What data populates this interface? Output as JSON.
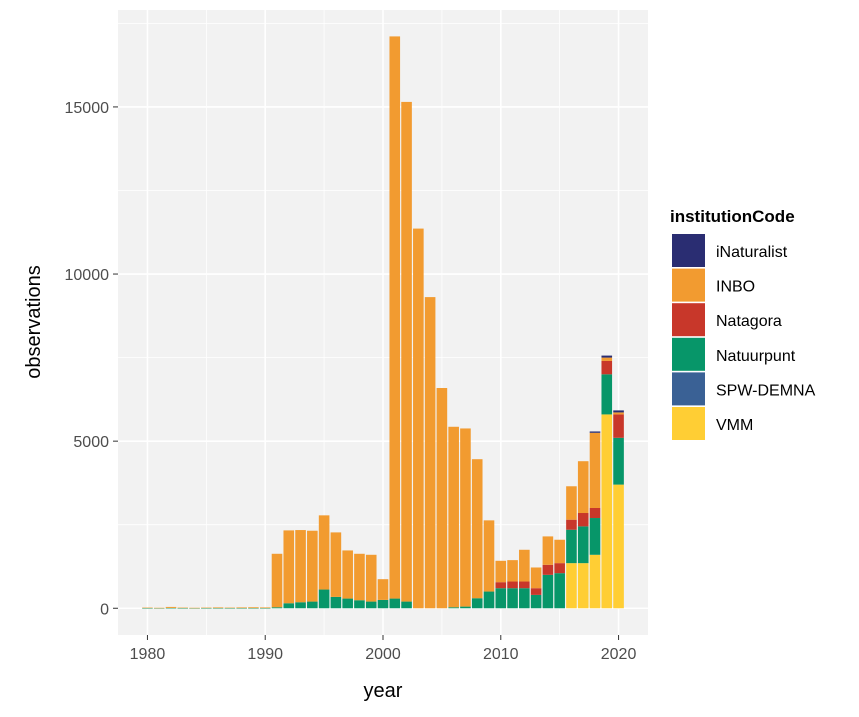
{
  "chart_data": {
    "type": "bar",
    "stacked": true,
    "xlabel": "year",
    "ylabel": "observations",
    "xlim": [
      1977.5,
      2022.5
    ],
    "ylim": [
      -800,
      17900
    ],
    "x_ticks": [
      1980,
      1990,
      2000,
      2010,
      2020
    ],
    "y_ticks": [
      0,
      5000,
      10000,
      15000
    ],
    "grid": true,
    "legend": {
      "title": "institutionCode",
      "placement": "right"
    },
    "categories": [
      1980,
      1981,
      1982,
      1983,
      1984,
      1985,
      1986,
      1987,
      1988,
      1989,
      1990,
      1991,
      1992,
      1993,
      1994,
      1995,
      1996,
      1997,
      1998,
      1999,
      2000,
      2001,
      2002,
      2003,
      2004,
      2005,
      2006,
      2007,
      2008,
      2009,
      2010,
      2011,
      2012,
      2013,
      2014,
      2015,
      2016,
      2017,
      2018,
      2019,
      2020
    ],
    "series": [
      {
        "name": "iNaturalist",
        "color": "#2a2d72",
        "values": [
          0,
          0,
          0,
          0,
          0,
          0,
          0,
          0,
          0,
          0,
          0,
          0,
          0,
          0,
          0,
          0,
          0,
          0,
          0,
          0,
          0,
          0,
          0,
          0,
          0,
          0,
          0,
          0,
          0,
          0,
          0,
          0,
          0,
          0,
          0,
          0,
          0,
          0,
          40,
          60,
          60
        ]
      },
      {
        "name": "INBO",
        "color": "#f29b30",
        "values": [
          15,
          10,
          30,
          15,
          10,
          15,
          20,
          15,
          20,
          25,
          20,
          1600,
          2180,
          2160,
          2120,
          2220,
          1930,
          1440,
          1390,
          1400,
          620,
          16820,
          14950,
          11360,
          9310,
          6590,
          5400,
          5330,
          4160,
          2130,
          640,
          640,
          950,
          620,
          850,
          700,
          1000,
          1550,
          2250,
          100,
          60
        ]
      },
      {
        "name": "Natagora",
        "color": "#c8372a",
        "values": [
          0,
          0,
          0,
          0,
          0,
          0,
          0,
          0,
          0,
          0,
          0,
          0,
          0,
          0,
          0,
          0,
          0,
          0,
          0,
          0,
          0,
          0,
          0,
          0,
          0,
          0,
          0,
          0,
          0,
          0,
          180,
          200,
          200,
          200,
          300,
          300,
          300,
          400,
          300,
          400,
          700
        ]
      },
      {
        "name": "Natuurpunt",
        "color": "#079669",
        "values": [
          5,
          5,
          10,
          5,
          5,
          5,
          5,
          5,
          5,
          5,
          5,
          30,
          150,
          180,
          200,
          560,
          340,
          290,
          240,
          200,
          250,
          290,
          200,
          0,
          0,
          0,
          30,
          50,
          300,
          500,
          600,
          600,
          600,
          400,
          1000,
          1050,
          1000,
          1100,
          1100,
          1200,
          1400
        ]
      },
      {
        "name": "SPW-DEMNA",
        "color": "#3a6195",
        "values": [
          0,
          0,
          0,
          0,
          0,
          0,
          0,
          0,
          0,
          0,
          0,
          0,
          0,
          0,
          0,
          0,
          0,
          0,
          0,
          0,
          0,
          0,
          0,
          0,
          0,
          0,
          0,
          0,
          0,
          0,
          0,
          0,
          0,
          0,
          0,
          0,
          0,
          0,
          0,
          0,
          0
        ]
      },
      {
        "name": "VMM",
        "color": "#ffce34",
        "values": [
          0,
          0,
          0,
          0,
          0,
          0,
          0,
          0,
          0,
          0,
          0,
          0,
          0,
          0,
          0,
          0,
          0,
          0,
          0,
          0,
          0,
          0,
          0,
          0,
          0,
          0,
          0,
          0,
          0,
          0,
          0,
          0,
          0,
          0,
          0,
          0,
          1350,
          1350,
          1600,
          5800,
          3700
        ]
      }
    ]
  }
}
